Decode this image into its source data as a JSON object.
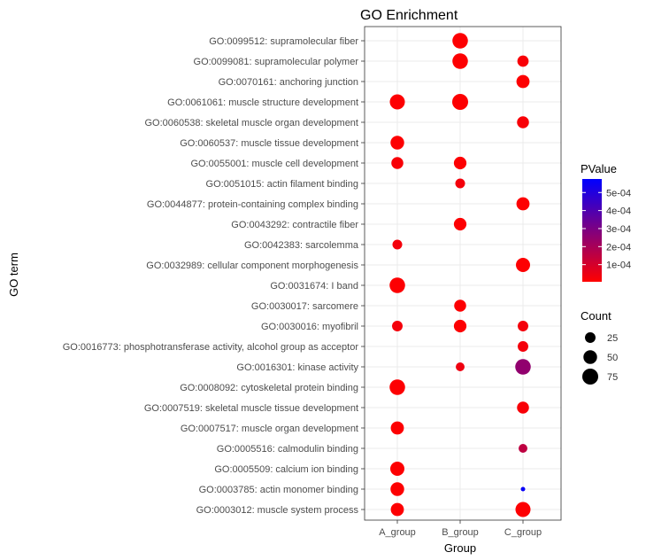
{
  "chart_data": {
    "type": "scatter",
    "title": "GO Enrichment",
    "xlabel": "Group",
    "ylabel": "GO term",
    "categories_x": [
      "A_group",
      "B_group",
      "C_group"
    ],
    "categories_y": [
      "GO:0099512: supramolecular fiber",
      "GO:0099081: supramolecular polymer",
      "GO:0070161: anchoring junction",
      "GO:0061061: muscle structure development",
      "GO:0060538: skeletal muscle organ development",
      "GO:0060537: muscle tissue development",
      "GO:0055001: muscle cell development",
      "GO:0051015: actin filament binding",
      "GO:0044877: protein-containing complex binding",
      "GO:0043292: contractile fiber",
      "GO:0042383: sarcolemma",
      "GO:0032989: cellular component morphogenesis",
      "GO:0031674: I band",
      "GO:0030017: sarcomere",
      "GO:0030016: myofibril",
      "GO:0016773: phosphotransferase activity, alcohol group as acceptor",
      "GO:0016301: kinase activity",
      "GO:0008092: cytoskeletal protein binding",
      "GO:0007519: skeletal muscle tissue development",
      "GO:0007517: muscle organ development",
      "GO:0005516: calmodulin binding",
      "GO:0005509: calcium ion binding",
      "GO:0003785: actin monomer binding",
      "GO:0003012: muscle system process"
    ],
    "points": [
      {
        "term": "GO:0099512: supramolecular fiber",
        "group": "B_group",
        "count": 70,
        "pvalue": 1e-05
      },
      {
        "term": "GO:0099081: supramolecular polymer",
        "group": "B_group",
        "count": 70,
        "pvalue": 1e-05
      },
      {
        "term": "GO:0099081: supramolecular polymer",
        "group": "C_group",
        "count": 30,
        "pvalue": 2e-05
      },
      {
        "term": "GO:0070161: anchoring junction",
        "group": "C_group",
        "count": 45,
        "pvalue": 1e-05
      },
      {
        "term": "GO:0061061: muscle structure development",
        "group": "A_group",
        "count": 65,
        "pvalue": 1e-05
      },
      {
        "term": "GO:0061061: muscle structure development",
        "group": "B_group",
        "count": 75,
        "pvalue": 1e-05
      },
      {
        "term": "GO:0060538: skeletal muscle organ development",
        "group": "C_group",
        "count": 35,
        "pvalue": 2e-05
      },
      {
        "term": "GO:0060537: muscle tissue development",
        "group": "A_group",
        "count": 50,
        "pvalue": 1e-05
      },
      {
        "term": "GO:0055001: muscle cell development",
        "group": "A_group",
        "count": 35,
        "pvalue": 2e-05
      },
      {
        "term": "GO:0055001: muscle cell development",
        "group": "B_group",
        "count": 40,
        "pvalue": 1e-05
      },
      {
        "term": "GO:0051015: actin filament binding",
        "group": "B_group",
        "count": 20,
        "pvalue": 3e-05
      },
      {
        "term": "GO:0044877: protein-containing complex binding",
        "group": "C_group",
        "count": 45,
        "pvalue": 1e-05
      },
      {
        "term": "GO:0043292: contractile fiber",
        "group": "B_group",
        "count": 40,
        "pvalue": 1e-05
      },
      {
        "term": "GO:0042383: sarcolemma",
        "group": "A_group",
        "count": 20,
        "pvalue": 3e-05
      },
      {
        "term": "GO:0032989: cellular component morphogenesis",
        "group": "C_group",
        "count": 55,
        "pvalue": 1e-05
      },
      {
        "term": "GO:0031674: I band",
        "group": "A_group",
        "count": 70,
        "pvalue": 1e-05
      },
      {
        "term": "GO:0030017: sarcomere",
        "group": "B_group",
        "count": 35,
        "pvalue": 1e-05
      },
      {
        "term": "GO:0030016: myofibril",
        "group": "A_group",
        "count": 25,
        "pvalue": 3e-05
      },
      {
        "term": "GO:0030016: myofibril",
        "group": "B_group",
        "count": 40,
        "pvalue": 1e-05
      },
      {
        "term": "GO:0030016: myofibril",
        "group": "C_group",
        "count": 25,
        "pvalue": 3e-05
      },
      {
        "term": "GO:0016773: phosphotransferase activity, alcohol group as acceptor",
        "group": "C_group",
        "count": 25,
        "pvalue": 3e-05
      },
      {
        "term": "GO:0016301: kinase activity",
        "group": "B_group",
        "count": 15,
        "pvalue": 4e-05
      },
      {
        "term": "GO:0016301: kinase activity",
        "group": "C_group",
        "count": 70,
        "pvalue": 0.00025
      },
      {
        "term": "GO:0008092: cytoskeletal protein binding",
        "group": "A_group",
        "count": 70,
        "pvalue": 1e-05
      },
      {
        "term": "GO:0007519: skeletal muscle tissue development",
        "group": "C_group",
        "count": 35,
        "pvalue": 2e-05
      },
      {
        "term": "GO:0007517: muscle organ development",
        "group": "A_group",
        "count": 45,
        "pvalue": 1e-05
      },
      {
        "term": "GO:0005516: calmodulin binding",
        "group": "C_group",
        "count": 15,
        "pvalue": 0.00015
      },
      {
        "term": "GO:0005509: calcium ion binding",
        "group": "A_group",
        "count": 55,
        "pvalue": 1e-05
      },
      {
        "term": "GO:0003785: actin monomer binding",
        "group": "A_group",
        "count": 50,
        "pvalue": 1e-05
      },
      {
        "term": "GO:0003785: actin monomer binding",
        "group": "C_group",
        "count": 5,
        "pvalue": 0.00056
      },
      {
        "term": "GO:0003012: muscle system process",
        "group": "A_group",
        "count": 45,
        "pvalue": 1e-05
      },
      {
        "term": "GO:0003012: muscle system process",
        "group": "C_group",
        "count": 65,
        "pvalue": 1e-05
      }
    ],
    "color_scale": {
      "title": "PValue",
      "low_color": "#ff0000",
      "high_color": "#0000ff",
      "range": [
        5e-06,
        0.000575
      ],
      "ticks": [
        0.0005,
        0.0004,
        0.0003,
        0.0002,
        0.0001
      ],
      "tick_labels": [
        "5e-04",
        "4e-04",
        "3e-04",
        "2e-04",
        "1e-04"
      ]
    },
    "size_scale": {
      "title": "Count",
      "range": [
        5,
        75
      ],
      "ticks": [
        25,
        50,
        75
      ],
      "tick_labels": [
        "25",
        "50",
        "75"
      ]
    },
    "grid": true,
    "legend_position": "right"
  }
}
